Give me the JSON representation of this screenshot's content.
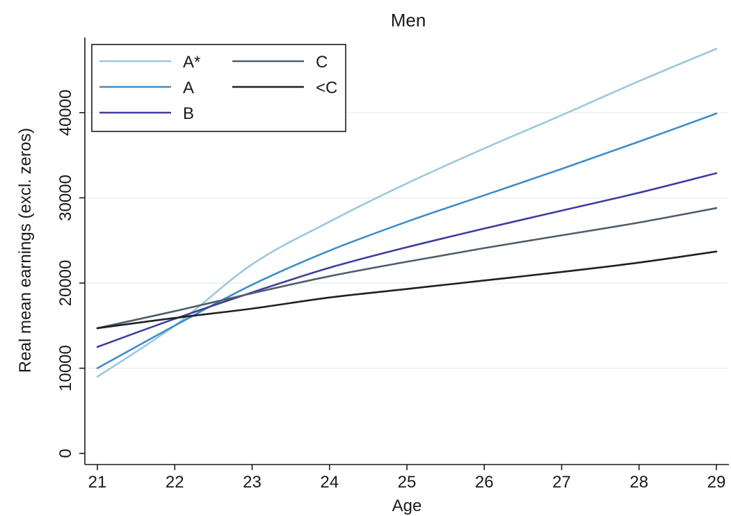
{
  "chart_data": {
    "type": "line",
    "title": "Men",
    "xlabel": "Age",
    "ylabel": "Real mean earnings (excl. zeros)",
    "xlim": [
      21,
      29
    ],
    "ylim": [
      0,
      48000
    ],
    "x_ticks": [
      21,
      22,
      23,
      24,
      25,
      26,
      27,
      28,
      29
    ],
    "y_ticks": [
      0,
      10000,
      20000,
      30000,
      40000
    ],
    "grid": true,
    "legend_placement": "top-left",
    "x": [
      21,
      22,
      23,
      24,
      25,
      26,
      27,
      28,
      29
    ],
    "series": [
      {
        "name": "A*",
        "color": "#9cc8dc",
        "values": [
          9000,
          15000,
          22200,
          27200,
          31700,
          35800,
          39700,
          43700,
          47500
        ]
      },
      {
        "name": "A",
        "color": "#3d8dc7",
        "values": [
          10000,
          15000,
          19800,
          23800,
          27200,
          30300,
          33400,
          36600,
          39900
        ]
      },
      {
        "name": "B",
        "color": "#3f3ca0",
        "values": [
          12500,
          15800,
          18900,
          21800,
          24200,
          26400,
          28500,
          30600,
          32900
        ]
      },
      {
        "name": "C",
        "color": "#4f5e6b",
        "values": [
          14700,
          16700,
          18800,
          20800,
          22500,
          24100,
          25600,
          27100,
          28800
        ]
      },
      {
        "name": "<C",
        "color": "#1f2024",
        "values": [
          14700,
          15900,
          17000,
          18300,
          19300,
          20300,
          21300,
          22400,
          23700
        ]
      }
    ]
  }
}
